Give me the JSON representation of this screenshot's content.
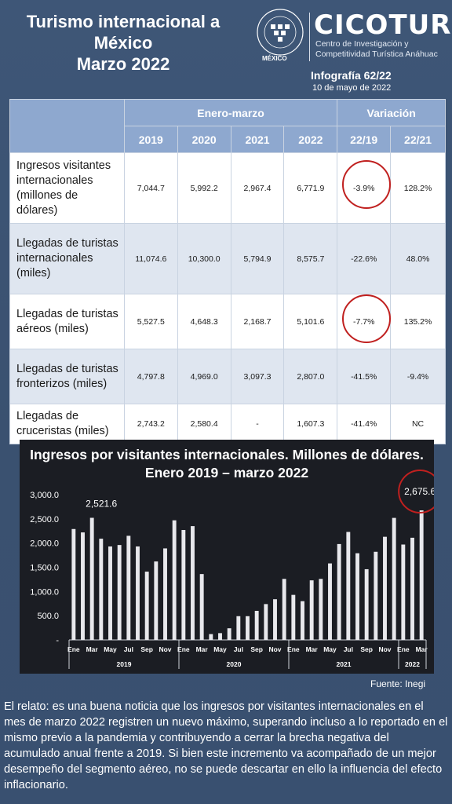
{
  "header": {
    "title_lines": [
      "Turismo internacional a",
      "México",
      "Marzo 2022"
    ],
    "infografia": "Infografía 62/22",
    "fecha": "10 de mayo de 2022"
  },
  "logo": {
    "seal_text": "UNIVERSIDAD ANÁHUAC",
    "seal_motto": "VINCE IN BONO MALUM",
    "city": "MÉXICO",
    "brand": "CICOTUR",
    "subtitle_lines": [
      "Centro de Investigación y",
      "Competitividad Turística Anáhuac"
    ]
  },
  "table": {
    "group_headers": [
      "Enero-marzo",
      "Variación"
    ],
    "columns": [
      "2019",
      "2020",
      "2021",
      "2022",
      "22/19",
      "22/21"
    ],
    "rows": [
      {
        "label": "Ingresos visitantes internacionales (millones de dólares)",
        "values": [
          "7,044.7",
          "5,992.2",
          "2,967.4",
          "6,771.9",
          "-3.9%",
          "128.2%"
        ]
      },
      {
        "label": "Llegadas de turistas internacionales (miles)",
        "values": [
          "11,074.6",
          "10,300.0",
          "5,794.9",
          "8,575.7",
          "-22.6%",
          "48.0%"
        ]
      },
      {
        "label": "Llegadas de turistas aéreos (miles)",
        "values": [
          "5,527.5",
          "4,648.3",
          "2,168.7",
          "5,101.6",
          "-7.7%",
          "135.2%"
        ]
      },
      {
        "label": "Llegadas de turistas fronterizos (miles)",
        "values": [
          "4,797.8",
          "4,969.0",
          "3,097.3",
          "2,807.0",
          "-41.5%",
          "-9.4%"
        ]
      },
      {
        "label": "Llegadas de cruceristas (miles)",
        "values": [
          "2,743.2",
          "2,580.4",
          "-",
          "1,607.3",
          "-41.4%",
          "NC"
        ]
      }
    ]
  },
  "chart_data": {
    "type": "bar",
    "title": "Ingresos por visitantes internacionales. Millones de dólares. Enero 2019 – marzo 2022",
    "ylim": [
      0,
      3000
    ],
    "yticks": [
      "3,000.0",
      "2,500.0",
      "2,000.0",
      "1,500.0",
      "1,000.0",
      "500.0",
      "-"
    ],
    "month_labels": [
      "Ene",
      "",
      "Mar",
      "",
      "May",
      "",
      "Jul",
      "",
      "Sep",
      "",
      "Nov",
      "",
      "Ene",
      "",
      "Mar",
      "",
      "May",
      "",
      "Jul",
      "",
      "Sep",
      "",
      "Nov",
      "",
      "Ene",
      "",
      "Mar",
      "",
      "May",
      "",
      "Jul",
      "",
      "Sep",
      "",
      "Nov",
      "",
      "Ene",
      "",
      "Mar"
    ],
    "years": [
      {
        "label": "2019",
        "count": 12
      },
      {
        "label": "2020",
        "count": 12
      },
      {
        "label": "2021",
        "count": 12
      },
      {
        "label": "2022",
        "count": 3
      }
    ],
    "values": [
      2290,
      2220,
      2521.6,
      2090,
      1930,
      1960,
      2150,
      1930,
      1410,
      1620,
      1890,
      2470,
      2270,
      2350,
      1360,
      120,
      140,
      240,
      490,
      490,
      600,
      740,
      840,
      1260,
      930,
      800,
      1230,
      1260,
      1580,
      1980,
      2230,
      1790,
      1460,
      1820,
      2130,
      2520,
      1970,
      2110,
      2675.6
    ],
    "data_labels": [
      {
        "index": 2,
        "text": "2,521.6"
      },
      {
        "index": 38,
        "text": "2,675.6"
      }
    ],
    "bar_color": "#e8e8ec",
    "highlight_color": "#c0201f"
  },
  "source": "Fuente: Inegi",
  "relato": "El relato: es una buena noticia que los ingresos por visitantes internacionales en el mes de marzo 2022 registren un nuevo máximo, superando incluso a lo reportado en el mismo previo a la pandemia y contribuyendo a cerrar la brecha negativa del acumulado anual frente a 2019. Si bien este incremento va acompañado de un mejor desempeño del segmento aéreo, no se puede descartar en ello la influencia del efecto inflacionario."
}
